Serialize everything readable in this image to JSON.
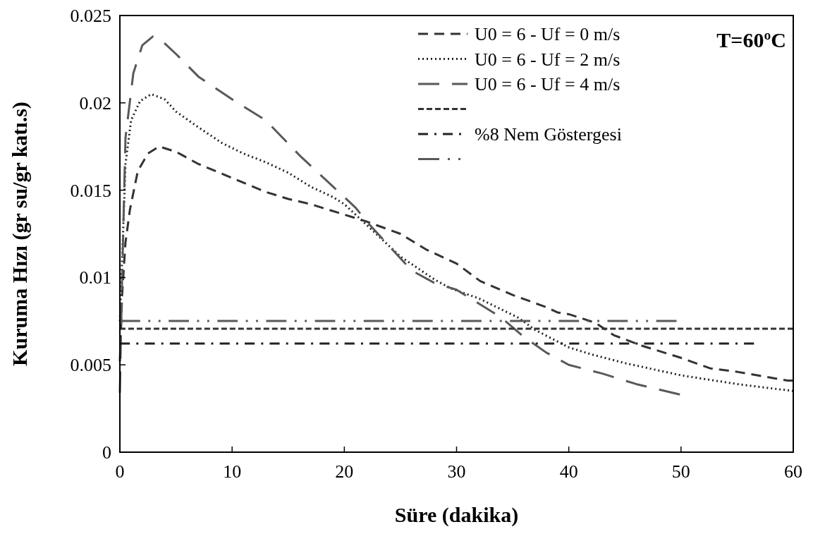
{
  "chart_data": {
    "type": "line",
    "xlabel": "Süre (dakika)",
    "ylabel": "Kuruma Hızı (gr su/gr katı.s)",
    "annotations": [
      "T=60ºC"
    ],
    "xlim": [
      0,
      60
    ],
    "ylim": [
      0,
      0.025
    ],
    "xticks": [
      0,
      10,
      20,
      30,
      40,
      50,
      60
    ],
    "yticks": [
      0,
      0.005,
      0.01,
      0.015,
      0.02,
      0.025
    ],
    "grid": false,
    "legend": "top right",
    "series": [
      {
        "name": "U0 = 6 - Uf = 0 m/s",
        "color": "#333333",
        "line_style": "dashed",
        "x": [
          0,
          0.2,
          0.5,
          0.9,
          1.6,
          2.5,
          3.5,
          5,
          7,
          10,
          13,
          15,
          17,
          20,
          22,
          25,
          27.3,
          30,
          32.1,
          35,
          38,
          39,
          40,
          42.4,
          44,
          46.5,
          50,
          52.6,
          55,
          59.5,
          60
        ],
        "values": [
          0.0052,
          0.009,
          0.012,
          0.0139,
          0.0161,
          0.0171,
          0.0175,
          0.0172,
          0.0165,
          0.0157,
          0.0149,
          0.0145,
          0.0142,
          0.0136,
          0.0132,
          0.0125,
          0.0116,
          0.0108,
          0.0098,
          0.009,
          0.0083,
          0.008,
          0.0079,
          0.0074,
          0.0067,
          0.0061,
          0.0054,
          0.0048,
          0.0046,
          0.0041,
          0.0041
        ]
      },
      {
        "name": "U0 = 6 - Uf = 2 m/s",
        "color": "#222222",
        "line_style": "dotted",
        "x": [
          0,
          0.2,
          0.5,
          1,
          1.8,
          2.8,
          4,
          5,
          7,
          9.1,
          11,
          13,
          15,
          17,
          19,
          20,
          22,
          25,
          28,
          29.4,
          32,
          35.5,
          37,
          40,
          42,
          45,
          50,
          55,
          60
        ],
        "values": [
          0.0075,
          0.011,
          0.0165,
          0.019,
          0.0201,
          0.0205,
          0.0202,
          0.0195,
          0.0186,
          0.0177,
          0.0171,
          0.0166,
          0.016,
          0.0152,
          0.0146,
          0.0142,
          0.013,
          0.0112,
          0.0099,
          0.0094,
          0.0088,
          0.0077,
          0.007,
          0.006,
          0.0056,
          0.0051,
          0.0044,
          0.0039,
          0.0035
        ]
      },
      {
        "name": "U0 = 6 - Uf = 4 m/s",
        "color": "#595959",
        "line_style": "dashed",
        "x": [
          0,
          0.2,
          0.5,
          1.2,
          2,
          2.95,
          4,
          5,
          7,
          10,
          13,
          16,
          19,
          21,
          22,
          24,
          26,
          28,
          30,
          32,
          34,
          36,
          38,
          40,
          43,
          46,
          49.9
        ],
        "values": [
          0.0034,
          0.01,
          0.018,
          0.0217,
          0.0233,
          0.0238,
          0.0234,
          0.0228,
          0.0215,
          0.0202,
          0.019,
          0.017,
          0.0152,
          0.014,
          0.0132,
          0.0118,
          0.0104,
          0.0097,
          0.0093,
          0.0085,
          0.0077,
          0.0066,
          0.0057,
          0.005,
          0.0045,
          0.0039,
          0.0033
        ]
      },
      {
        "color": "#333333",
        "line_style": "dashed",
        "x": [
          0,
          60
        ],
        "values": [
          0.00707,
          0.00707
        ]
      },
      {
        "name": "%8 Nem Göstergesi",
        "color": "#222222",
        "line_style": "dashed",
        "x": [
          0,
          56.5
        ],
        "values": [
          0.00622,
          0.00622
        ]
      },
      {
        "color": "#595959",
        "line_style": "dashed",
        "x": [
          0,
          49.6
        ],
        "values": [
          0.00751,
          0.00751
        ]
      }
    ]
  }
}
